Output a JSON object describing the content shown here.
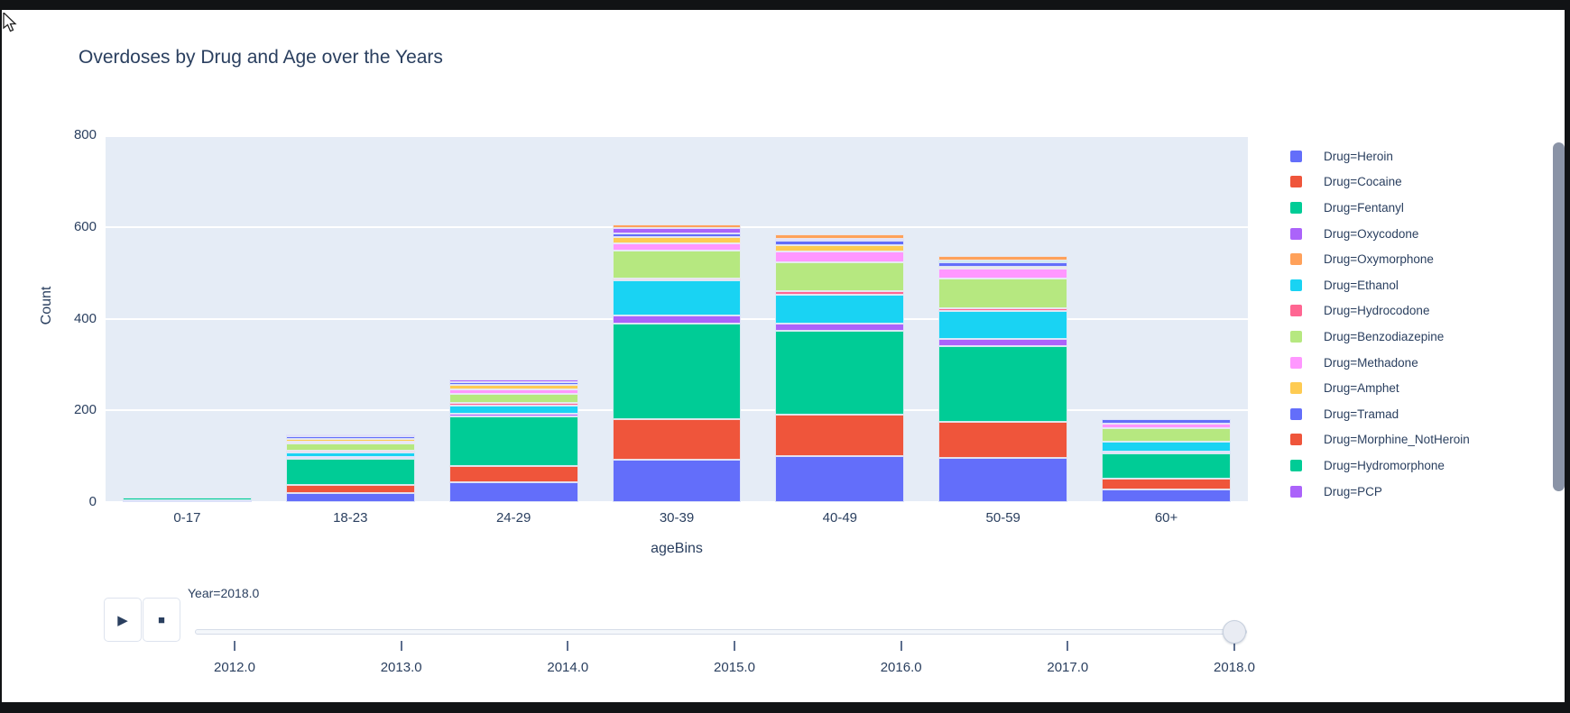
{
  "chart_data": {
    "type": "bar",
    "stacked": true,
    "title": "Overdoses by Drug and Age over the Years",
    "xlabel": "ageBins",
    "ylabel": "Count",
    "ylim": [
      0,
      800
    ],
    "yticks": [
      0,
      200,
      400,
      600,
      800
    ],
    "grid": true,
    "legend_position": "right",
    "plot_bg": "#E5ECF6",
    "text_color": "#2a3f5f",
    "categories": [
      "0-17",
      "18-23",
      "24-29",
      "30-39",
      "40-49",
      "50-59",
      "60+"
    ],
    "legend": [
      {
        "drug": "Heroin",
        "label": "Drug=Heroin",
        "color": "#636EFA"
      },
      {
        "drug": "Cocaine",
        "label": "Drug=Cocaine",
        "color": "#EF553B"
      },
      {
        "drug": "Fentanyl",
        "label": "Drug=Fentanyl",
        "color": "#00CC96"
      },
      {
        "drug": "Oxycodone",
        "label": "Drug=Oxycodone",
        "color": "#AB63FA"
      },
      {
        "drug": "Oxymorphone",
        "label": "Drug=Oxymorphone",
        "color": "#FFA15A"
      },
      {
        "drug": "Ethanol",
        "label": "Drug=Ethanol",
        "color": "#19D3F3"
      },
      {
        "drug": "Hydrocodone",
        "label": "Drug=Hydrocodone",
        "color": "#FF6692"
      },
      {
        "drug": "Benzodiazepine",
        "label": "Drug=Benzodiazepine",
        "color": "#B6E880"
      },
      {
        "drug": "Methadone",
        "label": "Drug=Methadone",
        "color": "#FF97FF"
      },
      {
        "drug": "Amphet",
        "label": "Drug=Amphet",
        "color": "#FECB52"
      },
      {
        "drug": "Tramad",
        "label": "Drug=Tramad",
        "color": "#636EFA"
      },
      {
        "drug": "Morphine_NotHeroin",
        "label": "Drug=Morphine_NotHeroin",
        "color": "#EF553B"
      },
      {
        "drug": "Hydromorphone",
        "label": "Drug=Hydromorphone",
        "color": "#00CC96"
      },
      {
        "drug": "PCP",
        "label": "Drug=PCP",
        "color": "#AB63FA"
      }
    ],
    "stacks": {
      "0-17": [
        {
          "drug": "Heroin",
          "value": 1
        },
        {
          "drug": "Fentanyl",
          "value": 2
        }
      ],
      "18-23": [
        {
          "drug": "Heroin",
          "value": 19
        },
        {
          "drug": "Cocaine",
          "value": 18
        },
        {
          "drug": "Fentanyl",
          "value": 57
        },
        {
          "drug": "Oxycodone",
          "value": 2
        },
        {
          "drug": "Ethanol",
          "value": 9
        },
        {
          "drug": "Hydrocodone",
          "value": 3
        },
        {
          "drug": "Benzodiazepine",
          "value": 15
        },
        {
          "drug": "Methadone",
          "value": 4
        },
        {
          "drug": "Amphet",
          "value": 3
        },
        {
          "drug": "Tramad",
          "value": 5
        },
        {
          "drug": "PCP",
          "value": 3
        }
      ],
      "24-29": [
        {
          "drug": "Heroin",
          "value": 43
        },
        {
          "drug": "Cocaine",
          "value": 36
        },
        {
          "drug": "Fentanyl",
          "value": 108
        },
        {
          "drug": "Oxycodone",
          "value": 5
        },
        {
          "drug": "Ethanol",
          "value": 19
        },
        {
          "drug": "Hydrocodone",
          "value": 2
        },
        {
          "drug": "Benzodiazepine",
          "value": 21
        },
        {
          "drug": "Methadone",
          "value": 9
        },
        {
          "drug": "Amphet",
          "value": 10
        },
        {
          "drug": "Tramad",
          "value": 6
        },
        {
          "drug": "PCP",
          "value": 6
        }
      ],
      "30-39": [
        {
          "drug": "Heroin",
          "value": 93
        },
        {
          "drug": "Cocaine",
          "value": 88
        },
        {
          "drug": "Fentanyl",
          "value": 209
        },
        {
          "drug": "Oxycodone",
          "value": 16
        },
        {
          "drug": "Ethanol",
          "value": 77
        },
        {
          "drug": "Hydrocodone",
          "value": 3
        },
        {
          "drug": "Benzodiazepine",
          "value": 61
        },
        {
          "drug": "Methadone",
          "value": 16
        },
        {
          "drug": "Amphet",
          "value": 14
        },
        {
          "drug": "Tramad",
          "value": 7
        },
        {
          "drug": "PCP",
          "value": 11
        },
        {
          "drug": "Oxymorphone",
          "value": 8
        }
      ],
      "40-49": [
        {
          "drug": "Heroin",
          "value": 100
        },
        {
          "drug": "Cocaine",
          "value": 90
        },
        {
          "drug": "Fentanyl",
          "value": 184
        },
        {
          "drug": "Oxycodone",
          "value": 15
        },
        {
          "drug": "Ethanol",
          "value": 64
        },
        {
          "drug": "Hydrocodone",
          "value": 8
        },
        {
          "drug": "Benzodiazepine",
          "value": 62
        },
        {
          "drug": "Methadone",
          "value": 23
        },
        {
          "drug": "Amphet",
          "value": 15
        },
        {
          "drug": "Tramad",
          "value": 9
        },
        {
          "drug": "PCP",
          "value": 4
        },
        {
          "drug": "Oxymorphone",
          "value": 9
        }
      ],
      "50-59": [
        {
          "drug": "Heroin",
          "value": 97
        },
        {
          "drug": "Cocaine",
          "value": 78
        },
        {
          "drug": "Fentanyl",
          "value": 165
        },
        {
          "drug": "Oxycodone",
          "value": 16
        },
        {
          "drug": "Ethanol",
          "value": 61
        },
        {
          "drug": "Hydrocodone",
          "value": 5
        },
        {
          "drug": "Benzodiazepine",
          "value": 66
        },
        {
          "drug": "Methadone",
          "value": 21
        },
        {
          "drug": "Amphet",
          "value": 5
        },
        {
          "drug": "Tramad",
          "value": 9
        },
        {
          "drug": "Hydromorphone",
          "value": 4
        },
        {
          "drug": "Oxymorphone",
          "value": 8
        }
      ],
      "60+": [
        {
          "drug": "Heroin",
          "value": 27
        },
        {
          "drug": "Cocaine",
          "value": 24
        },
        {
          "drug": "Fentanyl",
          "value": 55
        },
        {
          "drug": "Oxycodone",
          "value": 5
        },
        {
          "drug": "Ethanol",
          "value": 20
        },
        {
          "drug": "Benzodiazepine",
          "value": 30
        },
        {
          "drug": "Methadone",
          "value": 11
        },
        {
          "drug": "Tramad",
          "value": 9
        }
      ]
    }
  },
  "animation": {
    "play_icon": "▶",
    "stop_icon": "■",
    "frame_label": "Year=2018.0",
    "slider_value": "2018.0",
    "slider_ticks": [
      "2012.0",
      "2013.0",
      "2014.0",
      "2015.0",
      "2016.0",
      "2017.0",
      "2018.0"
    ]
  }
}
